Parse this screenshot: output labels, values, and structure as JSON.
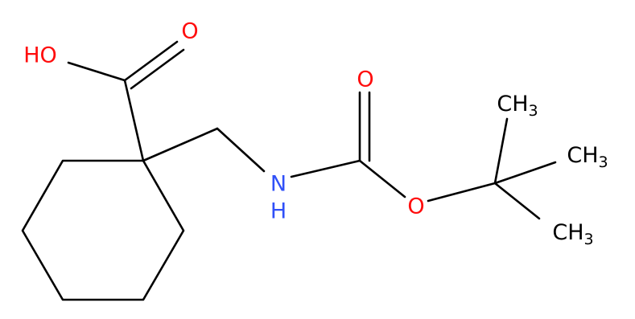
{
  "nodes": [
    {
      "label": "HO"
    },
    {
      "label": "O"
    },
    {
      "label": "N"
    },
    {
      "label": "H"
    },
    {
      "label": "O"
    },
    {
      "label": "O"
    },
    {
      "label": "CH",
      "subscript": "3"
    },
    {
      "label": "CH",
      "subscript": "3"
    },
    {
      "label": "CH",
      "subscript": "3"
    }
  ]
}
